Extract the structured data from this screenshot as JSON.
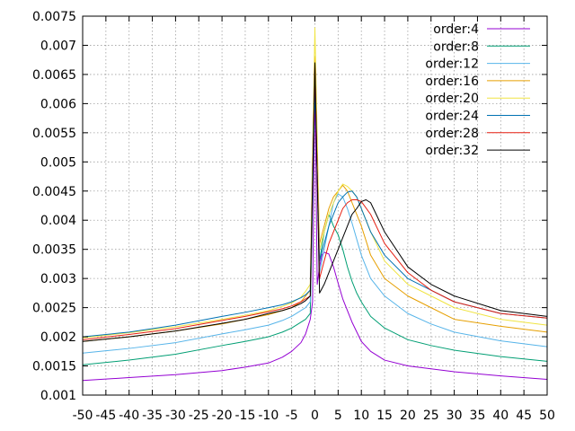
{
  "chart_data": {
    "type": "line",
    "title": "",
    "xlabel": "",
    "ylabel": "",
    "xlim": [
      -50,
      50
    ],
    "ylim": [
      0.001,
      0.0075
    ],
    "grid": true,
    "legend_position": "top-right",
    "x_ticks": [
      -50,
      -45,
      -40,
      -35,
      -30,
      -25,
      -20,
      -15,
      -10,
      -5,
      0,
      5,
      10,
      15,
      20,
      25,
      30,
      35,
      40,
      45,
      50
    ],
    "x_tick_labels": [
      "-50",
      "-45",
      "-40",
      "-35",
      "-30",
      "-25",
      "-20",
      "-15",
      "-10",
      "-5",
      "0",
      "5",
      "10",
      "15",
      "20",
      "25",
      "30",
      "35",
      "40",
      "45",
      "50"
    ],
    "y_ticks": [
      0.001,
      0.0015,
      0.002,
      0.0025,
      0.003,
      0.0035,
      0.004,
      0.0045,
      0.005,
      0.0055,
      0.006,
      0.0065,
      0.007,
      0.0075
    ],
    "y_tick_labels": [
      "0.001",
      "0.0015",
      "0.002",
      "0.0025",
      "0.003",
      "0.0035",
      "0.004",
      "0.0045",
      "0.005",
      "0.0055",
      "0.006",
      "0.0065",
      "0.007",
      "0.0075"
    ],
    "series": [
      {
        "name": "order:4",
        "color": "#9400d3",
        "x": [
          -50,
          -40,
          -30,
          -20,
          -15,
          -10,
          -7,
          -5,
          -3,
          -2,
          -1,
          -0.5,
          0,
          0.5,
          1,
          1.5,
          2,
          3,
          4,
          5,
          6,
          8,
          10,
          12,
          15,
          20,
          25,
          30,
          40,
          50
        ],
        "y": [
          0.00125,
          0.0013,
          0.00135,
          0.00142,
          0.00148,
          0.00155,
          0.00165,
          0.00175,
          0.0019,
          0.00205,
          0.0023,
          0.0026,
          0.0064,
          0.0029,
          0.0032,
          0.0034,
          0.00345,
          0.00342,
          0.0032,
          0.00292,
          0.00265,
          0.00225,
          0.00192,
          0.00175,
          0.0016,
          0.0015,
          0.00145,
          0.0014,
          0.00133,
          0.00127
        ]
      },
      {
        "name": "order:8",
        "color": "#009e73",
        "x": [
          -50,
          -40,
          -30,
          -20,
          -15,
          -10,
          -7,
          -5,
          -3,
          -2,
          -1,
          0,
          1,
          2,
          3,
          4,
          5,
          6,
          7,
          8,
          9,
          10,
          12,
          15,
          20,
          25,
          30,
          40,
          50
        ],
        "y": [
          0.00152,
          0.0016,
          0.0017,
          0.00185,
          0.00192,
          0.002,
          0.00208,
          0.00215,
          0.00225,
          0.0023,
          0.0024,
          0.0064,
          0.0033,
          0.0038,
          0.0041,
          0.0039,
          0.00375,
          0.0035,
          0.0032,
          0.00295,
          0.00275,
          0.0026,
          0.00235,
          0.00215,
          0.00195,
          0.00185,
          0.00177,
          0.00166,
          0.00158
        ]
      },
      {
        "name": "order:12",
        "color": "#56b4e9",
        "x": [
          -50,
          -40,
          -30,
          -20,
          -15,
          -10,
          -7,
          -5,
          -3,
          -2,
          -1,
          0,
          1,
          2,
          3,
          4,
          5,
          6,
          7,
          8,
          10,
          12,
          15,
          20,
          25,
          30,
          40,
          50
        ],
        "y": [
          0.00172,
          0.0018,
          0.0019,
          0.00205,
          0.00212,
          0.0022,
          0.00228,
          0.00235,
          0.00245,
          0.0025,
          0.0026,
          0.0066,
          0.0031,
          0.0035,
          0.0039,
          0.0043,
          0.00445,
          0.0044,
          0.0042,
          0.00395,
          0.0034,
          0.003,
          0.0027,
          0.0024,
          0.00222,
          0.00208,
          0.00193,
          0.00183
        ]
      },
      {
        "name": "order:16",
        "color": "#e69f00",
        "x": [
          -50,
          -40,
          -30,
          -20,
          -15,
          -10,
          -7,
          -5,
          -3,
          -2,
          -1,
          0,
          1,
          2,
          3,
          4,
          5,
          6,
          7,
          8,
          9,
          10,
          12,
          15,
          20,
          25,
          30,
          40,
          50
        ],
        "y": [
          0.00192,
          0.002,
          0.0021,
          0.00222,
          0.0023,
          0.00238,
          0.00245,
          0.0025,
          0.0026,
          0.0027,
          0.0028,
          0.0068,
          0.0036,
          0.0039,
          0.0042,
          0.0044,
          0.0045,
          0.0046,
          0.0045,
          0.0043,
          0.0041,
          0.0039,
          0.0034,
          0.003,
          0.0027,
          0.0025,
          0.0023,
          0.00218,
          0.00208
        ]
      },
      {
        "name": "order:20",
        "color": "#f0e442",
        "x": [
          -50,
          -40,
          -30,
          -20,
          -15,
          -10,
          -7,
          -5,
          -3,
          -2,
          -1,
          0,
          1,
          2,
          3,
          4,
          5,
          6,
          7,
          8,
          9,
          10,
          12,
          15,
          20,
          25,
          30,
          40,
          50
        ],
        "y": [
          0.00198,
          0.00207,
          0.00217,
          0.0023,
          0.00237,
          0.00245,
          0.00252,
          0.00258,
          0.00268,
          0.00278,
          0.0029,
          0.0073,
          0.0035,
          0.0038,
          0.0041,
          0.0043,
          0.0045,
          0.00462,
          0.00458,
          0.0045,
          0.0044,
          0.0042,
          0.0038,
          0.0033,
          0.0029,
          0.0027,
          0.0025,
          0.0023,
          0.0022
        ]
      },
      {
        "name": "order:24",
        "color": "#0072b2",
        "x": [
          -50,
          -40,
          -30,
          -20,
          -15,
          -10,
          -7,
          -5,
          -3,
          -2,
          -1,
          0,
          1,
          2,
          3,
          4,
          5,
          6,
          7,
          8,
          9,
          10,
          12,
          15,
          20,
          25,
          30,
          40,
          50
        ],
        "y": [
          0.002,
          0.00208,
          0.0022,
          0.00235,
          0.00242,
          0.0025,
          0.00255,
          0.0026,
          0.00267,
          0.00272,
          0.0028,
          0.0064,
          0.0033,
          0.0036,
          0.0039,
          0.0041,
          0.0043,
          0.0044,
          0.00448,
          0.0045,
          0.0044,
          0.0042,
          0.0038,
          0.0034,
          0.003,
          0.0028,
          0.0026,
          0.0024,
          0.00232
        ]
      },
      {
        "name": "order:28",
        "color": "#e51e10",
        "x": [
          -50,
          -40,
          -30,
          -20,
          -15,
          -10,
          -7,
          -5,
          -3,
          -2,
          -1,
          0,
          1,
          2,
          3,
          4,
          5,
          6,
          7,
          8,
          9,
          10,
          12,
          15,
          20,
          25,
          30,
          40,
          50
        ],
        "y": [
          0.00195,
          0.00204,
          0.00214,
          0.00228,
          0.00235,
          0.00243,
          0.00248,
          0.00253,
          0.0026,
          0.00265,
          0.0027,
          0.0067,
          0.003,
          0.0033,
          0.0036,
          0.0038,
          0.004,
          0.0042,
          0.0043,
          0.00435,
          0.00435,
          0.00432,
          0.0041,
          0.0036,
          0.0031,
          0.0028,
          0.0026,
          0.0024,
          0.00232
        ]
      },
      {
        "name": "order:32",
        "color": "#000000",
        "x": [
          -50,
          -40,
          -30,
          -20,
          -15,
          -10,
          -7,
          -5,
          -3,
          -2,
          -1,
          0,
          1,
          2,
          3,
          4,
          5,
          6,
          7,
          8,
          9,
          10,
          11,
          12,
          15,
          20,
          25,
          30,
          40,
          50
        ],
        "y": [
          0.00192,
          0.002,
          0.0021,
          0.00223,
          0.0023,
          0.0024,
          0.00245,
          0.0025,
          0.00257,
          0.00262,
          0.0027,
          0.0067,
          0.00275,
          0.0029,
          0.0031,
          0.0033,
          0.0035,
          0.0037,
          0.0039,
          0.0041,
          0.0042,
          0.00432,
          0.00435,
          0.0043,
          0.0038,
          0.0032,
          0.0029,
          0.0027,
          0.00245,
          0.00235
        ]
      }
    ]
  }
}
